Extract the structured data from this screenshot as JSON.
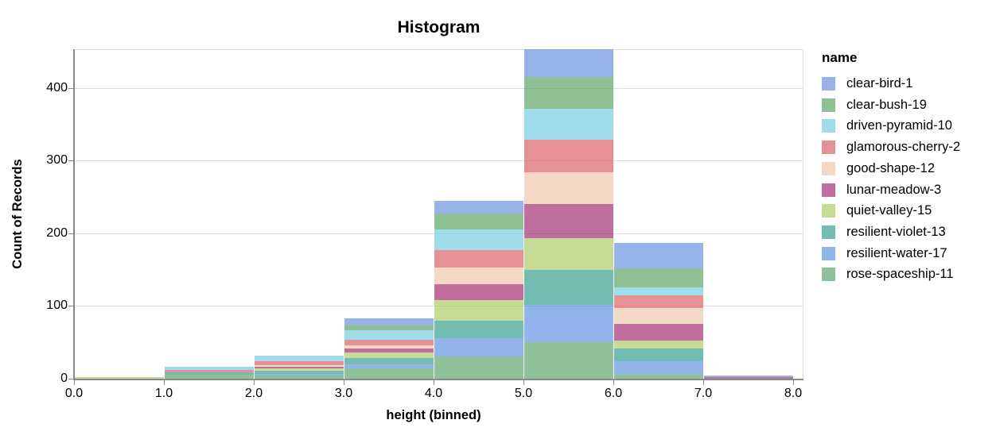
{
  "legend": {
    "title": "name"
  },
  "chart_data": {
    "type": "bar",
    "subtype": "stacked-histogram",
    "title": "Histogram",
    "xlabel": "height (binned)",
    "ylabel": "Count of Records",
    "grid": "horizontal",
    "legend_position": "right",
    "bar_opacity": 0.7,
    "stack_order": "last-legend-entry-at-bottom",
    "xlim": [
      0,
      8
    ],
    "ylim": [
      0,
      453
    ],
    "bin_edges": [
      0,
      1,
      2,
      3,
      4,
      5,
      6,
      7,
      8
    ],
    "x_tick_labels": [
      "0.0",
      "1.0",
      "2.0",
      "3.0",
      "4.0",
      "5.0",
      "6.0",
      "7.0",
      "8.0"
    ],
    "y_ticks": [
      0,
      100,
      200,
      300,
      400
    ],
    "y_tick_labels": [
      "0",
      "100",
      "200",
      "300",
      "400"
    ],
    "bin_totals": [
      2,
      16,
      32,
      83,
      245,
      453,
      187,
      4
    ],
    "series": [
      {
        "name": "clear-bird-1",
        "color": "#6a94de",
        "values": [
          0,
          0,
          0,
          10,
          18,
          38,
          35,
          2
        ]
      },
      {
        "name": "clear-bush-19",
        "color": "#5fa566",
        "values": [
          0,
          0,
          0,
          6,
          22,
          44,
          27,
          0
        ]
      },
      {
        "name": "driven-pyramid-10",
        "color": "#76ccde",
        "values": [
          0,
          4,
          8,
          13,
          28,
          42,
          10,
          0
        ]
      },
      {
        "name": "glamorous-cherry-2",
        "color": "#db6269",
        "values": [
          0,
          3,
          5,
          8,
          24,
          45,
          18,
          0
        ]
      },
      {
        "name": "good-shape-12",
        "color": "#eec9ac",
        "values": [
          0,
          0,
          3,
          4,
          23,
          44,
          22,
          0
        ]
      },
      {
        "name": "lunar-meadow-3",
        "color": "#a53174",
        "values": [
          0,
          0,
          2,
          6,
          22,
          47,
          23,
          2
        ]
      },
      {
        "name": "quiet-valley-15",
        "color": "#accc69",
        "values": [
          2,
          0,
          3,
          8,
          28,
          43,
          10,
          0
        ]
      },
      {
        "name": "resilient-violet-13",
        "color": "#369f91",
        "values": [
          0,
          4,
          4,
          8,
          24,
          49,
          18,
          0
        ]
      },
      {
        "name": "resilient-water-17",
        "color": "#6394e1",
        "values": [
          0,
          0,
          3,
          6,
          25,
          51,
          17,
          0
        ]
      },
      {
        "name": "rose-spaceship-11",
        "color": "#60a86c",
        "values": [
          0,
          5,
          4,
          14,
          31,
          50,
          7,
          0
        ]
      }
    ]
  }
}
